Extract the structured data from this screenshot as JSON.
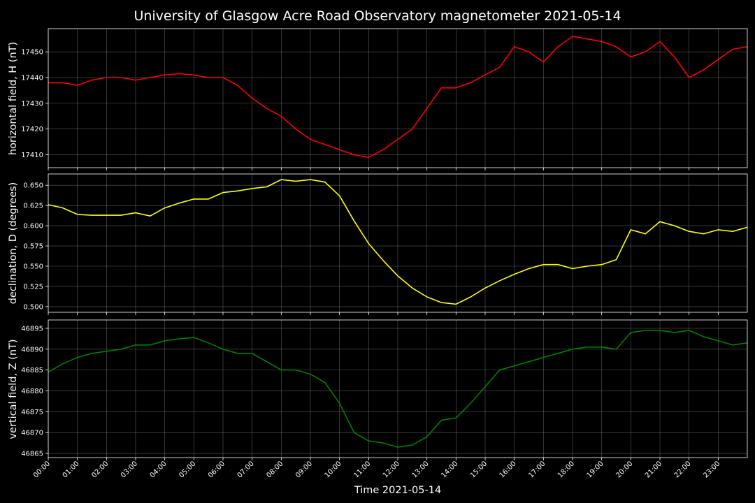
{
  "chart_data": {
    "type": "line",
    "title": "University of Glasgow Acre Road Observatory magnetometer 2021-05-14",
    "xlabel": "Time 2021-05-14",
    "x_ticks": [
      "00:00",
      "01:00",
      "02:00",
      "03:00",
      "04:00",
      "05:00",
      "06:00",
      "07:00",
      "08:00",
      "09:00",
      "10:00",
      "11:00",
      "12:00",
      "13:00",
      "14:00",
      "15:00",
      "16:00",
      "17:00",
      "18:00",
      "19:00",
      "20:00",
      "21:00",
      "22:00",
      "23:00"
    ],
    "xlim_hours": [
      0,
      24
    ],
    "grid": true,
    "panels": [
      {
        "ylabel": "horizontal field, H (nT)",
        "color": "#ff0000",
        "ylim": [
          17405,
          17459
        ],
        "y_ticks": [
          "17410",
          "17420",
          "17430",
          "17440",
          "17450"
        ],
        "y_tick_values": [
          17410,
          17420,
          17430,
          17440,
          17450
        ],
        "x_hours": [
          0,
          0.5,
          1,
          1.5,
          2,
          2.5,
          3,
          3.5,
          4,
          4.5,
          5,
          5.5,
          6,
          6.5,
          7,
          7.5,
          8,
          8.5,
          9,
          9.5,
          10,
          10.5,
          11,
          11.5,
          12,
          12.5,
          13,
          13.5,
          14,
          14.5,
          15,
          15.5,
          16,
          16.5,
          17,
          17.5,
          18,
          18.5,
          19,
          19.5,
          20,
          20.5,
          21,
          21.5,
          22,
          22.5,
          23,
          23.5,
          24
        ],
        "values": [
          17438,
          17438,
          17437,
          17439,
          17440,
          17440,
          17439,
          17440,
          17441,
          17441.5,
          17441,
          17440,
          17440,
          17437,
          17432,
          17428,
          17425,
          17420,
          17416,
          17414,
          17412,
          17410,
          17409,
          17412,
          17416,
          17420,
          17428,
          17436,
          17436,
          17438,
          17441,
          17444,
          17452,
          17450,
          17446,
          17452,
          17456,
          17455,
          17454,
          17452,
          17448,
          17450,
          17454,
          17448,
          17440,
          17443,
          17447,
          17451,
          17452
        ]
      },
      {
        "ylabel": "declination, D (degrees)",
        "color": "#ffff00",
        "ylim": [
          0.493,
          0.664
        ],
        "y_ticks": [
          "0.500",
          "0.525",
          "0.550",
          "0.575",
          "0.600",
          "0.625",
          "0.650"
        ],
        "y_tick_values": [
          0.5,
          0.525,
          0.55,
          0.575,
          0.6,
          0.625,
          0.65
        ],
        "x_hours": [
          0,
          0.5,
          1,
          1.5,
          2,
          2.5,
          3,
          3.5,
          4,
          4.5,
          5,
          5.5,
          6,
          6.5,
          7,
          7.5,
          8,
          8.5,
          9,
          9.5,
          10,
          10.5,
          11,
          11.5,
          12,
          12.5,
          13,
          13.5,
          14,
          14.5,
          15,
          15.5,
          16,
          16.5,
          17,
          17.5,
          18,
          18.5,
          19,
          19.5,
          20,
          20.5,
          21,
          21.5,
          22,
          22.5,
          23,
          23.5,
          24
        ],
        "values": [
          0.626,
          0.622,
          0.614,
          0.613,
          0.613,
          0.613,
          0.616,
          0.612,
          0.622,
          0.628,
          0.633,
          0.633,
          0.641,
          0.643,
          0.646,
          0.648,
          0.657,
          0.655,
          0.657,
          0.654,
          0.637,
          0.606,
          0.578,
          0.557,
          0.538,
          0.523,
          0.512,
          0.505,
          0.503,
          0.512,
          0.523,
          0.532,
          0.54,
          0.547,
          0.552,
          0.552,
          0.547,
          0.55,
          0.552,
          0.558,
          0.595,
          0.59,
          0.605,
          0.6,
          0.593,
          0.59,
          0.595,
          0.593,
          0.598
        ]
      },
      {
        "ylabel": "vertical field, Z (nT)",
        "color": "#008000",
        "ylim": [
          46864,
          46897
        ],
        "y_ticks": [
          "46865",
          "46870",
          "46875",
          "46880",
          "46885",
          "46890",
          "46895"
        ],
        "y_tick_values": [
          46865,
          46870,
          46875,
          46880,
          46885,
          46890,
          46895
        ],
        "x_hours": [
          0,
          0.5,
          1,
          1.5,
          2,
          2.5,
          3,
          3.5,
          4,
          4.5,
          5,
          5.5,
          6,
          6.5,
          7,
          7.5,
          8,
          8.5,
          9,
          9.5,
          10,
          10.5,
          11,
          11.5,
          12,
          12.5,
          13,
          13.5,
          14,
          14.5,
          15,
          15.5,
          16,
          16.5,
          17,
          17.5,
          18,
          18.5,
          19,
          19.5,
          20,
          20.5,
          21,
          21.5,
          22,
          22.5,
          23,
          23.5,
          24
        ],
        "values": [
          46884.5,
          46886.5,
          46888,
          46889,
          46889.5,
          46890,
          46891,
          46891,
          46892,
          46892.5,
          46892.8,
          46891.5,
          46890,
          46889,
          46889,
          46887,
          46885,
          46885,
          46884,
          46882,
          46877,
          46870,
          46868,
          46867.5,
          46866.5,
          46867,
          46869,
          46873,
          46873.5,
          46877,
          46881,
          46885,
          46886,
          46887,
          46888,
          46889,
          46890,
          46890.5,
          46890.5,
          46890,
          46894,
          46894.5,
          46894.5,
          46894,
          46894.5,
          46893,
          46892,
          46891,
          46891.5
        ]
      }
    ]
  }
}
